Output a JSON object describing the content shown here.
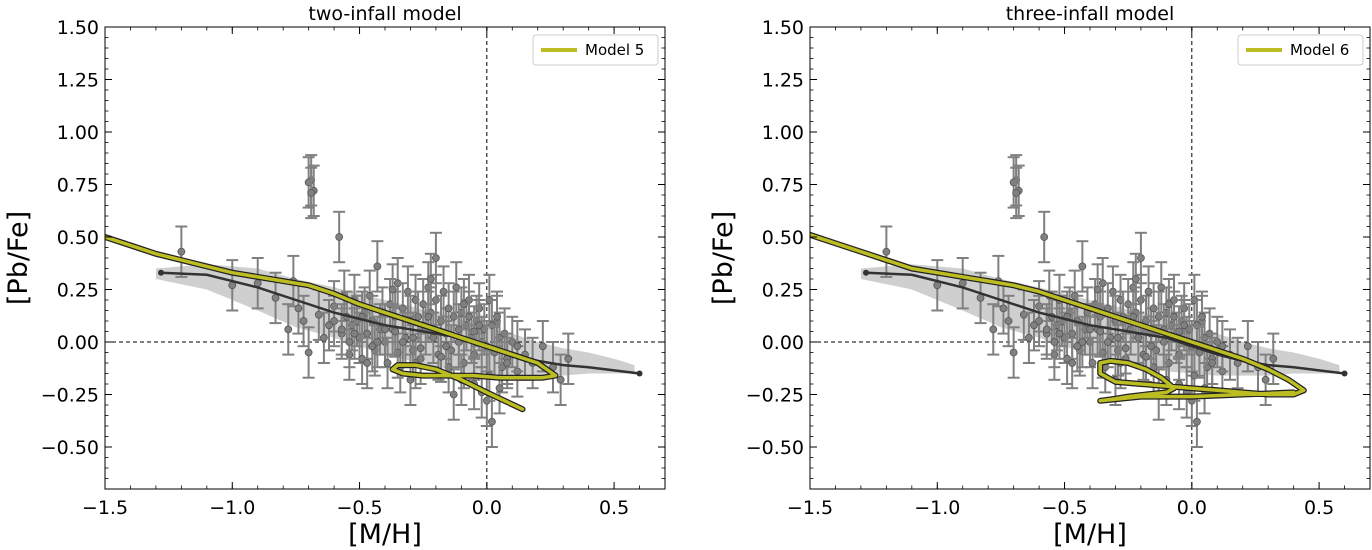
{
  "chart_data": [
    {
      "type": "scatter",
      "title": "two-infall model",
      "xlabel": "[M/H]",
      "ylabel": "[Pb/Fe]",
      "xlim": [
        -1.5,
        0.7
      ],
      "ylim": [
        -0.7,
        1.5
      ],
      "xticks": [
        -1.5,
        -1.0,
        -0.5,
        0.0,
        0.5
      ],
      "xtick_labels": [
        "−1.5",
        "−1.0",
        "−0.5",
        "0.0",
        "0.5"
      ],
      "yticks": [
        -0.5,
        -0.25,
        0.0,
        0.25,
        0.5,
        0.75,
        1.0,
        1.25,
        1.5
      ],
      "ytick_labels": [
        "−0.50",
        "−0.25",
        "0.00",
        "0.25",
        "0.50",
        "0.75",
        "1.00",
        "1.25",
        "1.50"
      ],
      "reference_lines": {
        "x": 0.0,
        "y": 0.0
      },
      "legend": {
        "position": "top-right",
        "entries": [
          {
            "label": "Model 5",
            "color": "#bcbd22"
          }
        ]
      },
      "series": [
        {
          "name": "Model 5",
          "kind": "model-line",
          "color": "#bcbd22",
          "x": [
            -1.5,
            -1.4,
            -1.3,
            -1.2,
            -1.1,
            -1.0,
            -0.9,
            -0.8,
            -0.7,
            -0.6,
            -0.5,
            -0.4,
            -0.3,
            -0.2,
            -0.1,
            0.0,
            0.1,
            0.2,
            0.27,
            0.22,
            0.12,
            0.05,
            -0.05,
            -0.15,
            -0.25,
            -0.33,
            -0.37,
            -0.35,
            -0.28,
            -0.2,
            -0.1,
            0.0,
            0.07,
            0.14
          ],
          "y": [
            0.5,
            0.46,
            0.42,
            0.39,
            0.36,
            0.33,
            0.31,
            0.29,
            0.27,
            0.23,
            0.18,
            0.14,
            0.1,
            0.06,
            0.02,
            -0.02,
            -0.06,
            -0.1,
            -0.16,
            -0.17,
            -0.17,
            -0.17,
            -0.16,
            -0.16,
            -0.16,
            -0.15,
            -0.13,
            -0.11,
            -0.11,
            -0.13,
            -0.18,
            -0.24,
            -0.28,
            -0.32
          ]
        },
        {
          "name": "Data median",
          "kind": "median-line",
          "color": "#333333",
          "x": [
            -1.28,
            -1.1,
            -0.9,
            -0.75,
            -0.6,
            -0.5,
            -0.4,
            -0.3,
            -0.2,
            -0.1,
            0.0,
            0.1,
            0.2,
            0.3,
            0.4,
            0.6
          ],
          "y": [
            0.33,
            0.32,
            0.26,
            0.2,
            0.14,
            0.11,
            0.08,
            0.06,
            0.04,
            0.02,
            -0.02,
            -0.06,
            -0.09,
            -0.11,
            -0.12,
            -0.15
          ]
        },
        {
          "name": "Data spread",
          "kind": "band",
          "color": "#cccccc",
          "x": [
            -1.3,
            -1.1,
            -0.9,
            -0.75,
            -0.6,
            -0.5,
            -0.4,
            -0.3,
            -0.2,
            -0.1,
            0.0,
            0.1,
            0.2,
            0.3,
            0.4,
            0.5,
            0.58
          ],
          "y_upper": [
            0.35,
            0.37,
            0.35,
            0.3,
            0.26,
            0.23,
            0.2,
            0.17,
            0.14,
            0.11,
            0.07,
            0.04,
            0.0,
            -0.03,
            -0.05,
            -0.08,
            -0.11
          ],
          "y_lower": [
            0.3,
            0.25,
            0.15,
            0.07,
            0.02,
            -0.02,
            -0.06,
            -0.09,
            -0.12,
            -0.14,
            -0.15,
            -0.16,
            -0.16,
            -0.16,
            -0.15,
            -0.15,
            -0.15
          ]
        },
        {
          "name": "Stars",
          "kind": "errorbar-points",
          "color": "#808080",
          "x": [
            -1.2,
            -1.0,
            -0.9,
            -0.83,
            -0.78,
            -0.76,
            -0.74,
            -0.72,
            -0.7,
            -0.69,
            -0.68,
            -0.66,
            -0.64,
            -0.62,
            -0.6,
            -0.58,
            -0.57,
            -0.56,
            -0.55,
            -0.54,
            -0.53,
            -0.52,
            -0.51,
            -0.5,
            -0.49,
            -0.48,
            -0.47,
            -0.46,
            -0.45,
            -0.44,
            -0.43,
            -0.42,
            -0.41,
            -0.4,
            -0.39,
            -0.38,
            -0.37,
            -0.36,
            -0.35,
            -0.34,
            -0.33,
            -0.32,
            -0.31,
            -0.3,
            -0.29,
            -0.28,
            -0.27,
            -0.26,
            -0.25,
            -0.24,
            -0.23,
            -0.22,
            -0.21,
            -0.2,
            -0.19,
            -0.18,
            -0.17,
            -0.16,
            -0.15,
            -0.14,
            -0.13,
            -0.12,
            -0.11,
            -0.1,
            -0.09,
            -0.08,
            -0.07,
            -0.06,
            -0.05,
            -0.04,
            -0.03,
            -0.02,
            -0.01,
            0.0,
            0.01,
            0.02,
            0.03,
            0.04,
            0.05,
            0.06,
            0.07,
            0.08,
            0.1,
            0.12,
            0.15,
            0.18,
            0.22,
            0.26,
            0.29,
            0.32,
            -0.7,
            -0.69,
            -0.54,
            -0.47,
            -0.37,
            -0.3,
            -0.2,
            -0.13,
            -0.05,
            0.0,
            0.02,
            0.05,
            -0.35,
            -0.28,
            -0.22,
            -0.15,
            -0.1,
            -0.05,
            -0.02,
            0.01,
            -0.6,
            -0.52,
            -0.45,
            -0.4,
            -0.33,
            -0.26,
            -0.18,
            -0.11,
            -0.07,
            0.03,
            0.08,
            0.12,
            -0.57,
            -0.49,
            -0.43,
            -0.36,
            -0.29,
            -0.23,
            -0.16,
            -0.09,
            -0.03,
            0.04
          ],
          "y": [
            0.43,
            0.27,
            0.28,
            0.21,
            0.06,
            0.29,
            0.16,
            0.1,
            -0.05,
            0.77,
            0.72,
            0.13,
            0.02,
            0.08,
            0.17,
            0.5,
            0.04,
            0.22,
            0.12,
            -0.06,
            0.08,
            0.2,
            0.1,
            0.02,
            -0.08,
            0.14,
            0.04,
            0.22,
            0.1,
            -0.04,
            0.36,
            0.06,
            0.14,
            0.0,
            -0.1,
            0.18,
            0.06,
            0.12,
            0.28,
            -0.12,
            0.16,
            0.02,
            0.24,
            0.1,
            -0.04,
            0.2,
            0.12,
            -0.08,
            0.18,
            0.06,
            0.26,
            0.14,
            0.02,
            0.2,
            -0.06,
            0.1,
            0.24,
            0.04,
            0.16,
            -0.04,
            0.12,
            0.26,
            0.0,
            0.14,
            -0.1,
            0.08,
            0.2,
            0.02,
            -0.06,
            0.1,
            0.16,
            0.0,
            0.06,
            -0.02,
            0.2,
            0.08,
            -0.04,
            0.1,
            0.02,
            -0.12,
            0.04,
            -0.08,
            0.0,
            -0.14,
            -0.06,
            -0.1,
            -0.02,
            -0.12,
            -0.18,
            -0.08,
            0.76,
            0.71,
            0.0,
            -0.1,
            0.25,
            -0.18,
            0.4,
            -0.25,
            -0.2,
            -0.28,
            -0.38,
            -0.22,
            -0.05,
            -0.1,
            0.3,
            -0.12,
            -0.18,
            0.05,
            -0.24,
            -0.16,
            0.1,
            0.04,
            -0.02,
            0.06,
            0.0,
            -0.03,
            -0.07,
            0.06,
            0.12,
            -0.05,
            -0.1,
            -0.02,
            0.06,
            0.12,
            0.0,
            0.05,
            0.02,
            0.12,
            -0.02,
            0.18,
            0.08,
            0.12
          ],
          "y_error": 0.12
        }
      ]
    },
    {
      "type": "scatter",
      "title": "three-infall model",
      "xlabel": "[M/H]",
      "ylabel": "[Pb/Fe]",
      "xlim": [
        -1.5,
        0.7
      ],
      "ylim": [
        -0.7,
        1.5
      ],
      "xticks": [
        -1.5,
        -1.0,
        -0.5,
        0.0,
        0.5
      ],
      "xtick_labels": [
        "−1.5",
        "−1.0",
        "−0.5",
        "0.0",
        "0.5"
      ],
      "yticks": [
        -0.5,
        -0.25,
        0.0,
        0.25,
        0.5,
        0.75,
        1.0,
        1.25,
        1.5
      ],
      "ytick_labels": [
        "−0.50",
        "−0.25",
        "0.00",
        "0.25",
        "0.50",
        "0.75",
        "1.00",
        "1.25",
        "1.50"
      ],
      "reference_lines": {
        "x": 0.0,
        "y": 0.0
      },
      "legend": {
        "position": "top-right",
        "entries": [
          {
            "label": "Model 6",
            "color": "#bcbd22"
          }
        ]
      },
      "series": [
        {
          "name": "Model 6",
          "kind": "model-line",
          "color": "#bcbd22",
          "x": [
            -1.5,
            -1.4,
            -1.3,
            -1.2,
            -1.1,
            -1.0,
            -0.9,
            -0.8,
            -0.7,
            -0.6,
            -0.5,
            -0.4,
            -0.3,
            -0.2,
            -0.1,
            0.0,
            0.1,
            0.2,
            0.3,
            0.38,
            0.44,
            0.4,
            0.3,
            0.2,
            0.1,
            0.0,
            -0.1,
            -0.2,
            -0.3,
            -0.36,
            -0.36,
            -0.32,
            -0.25,
            -0.18,
            -0.12,
            -0.07,
            -0.1,
            -0.18,
            -0.25,
            -0.3,
            -0.36,
            -0.2,
            0.0,
            0.2,
            0.4
          ],
          "y": [
            0.51,
            0.47,
            0.43,
            0.39,
            0.35,
            0.33,
            0.31,
            0.29,
            0.27,
            0.24,
            0.2,
            0.16,
            0.12,
            0.08,
            0.04,
            0.0,
            -0.04,
            -0.08,
            -0.13,
            -0.18,
            -0.23,
            -0.25,
            -0.25,
            -0.24,
            -0.23,
            -0.22,
            -0.21,
            -0.2,
            -0.19,
            -0.15,
            -0.1,
            -0.09,
            -0.1,
            -0.13,
            -0.17,
            -0.22,
            -0.24,
            -0.25,
            -0.26,
            -0.27,
            -0.28,
            -0.26,
            -0.26,
            -0.25,
            -0.24
          ]
        },
        {
          "name": "Data median",
          "kind": "median-line",
          "color": "#333333",
          "x": [
            -1.28,
            -1.1,
            -0.9,
            -0.75,
            -0.6,
            -0.5,
            -0.4,
            -0.3,
            -0.2,
            -0.1,
            0.0,
            0.1,
            0.2,
            0.3,
            0.4,
            0.6
          ],
          "y": [
            0.33,
            0.32,
            0.26,
            0.2,
            0.14,
            0.11,
            0.08,
            0.06,
            0.04,
            0.02,
            -0.02,
            -0.06,
            -0.09,
            -0.11,
            -0.12,
            -0.15
          ]
        },
        {
          "name": "Data spread",
          "kind": "band",
          "color": "#cccccc",
          "x": [
            -1.3,
            -1.1,
            -0.9,
            -0.75,
            -0.6,
            -0.5,
            -0.4,
            -0.3,
            -0.2,
            -0.1,
            0.0,
            0.1,
            0.2,
            0.3,
            0.4,
            0.5,
            0.58
          ],
          "y_upper": [
            0.35,
            0.37,
            0.35,
            0.3,
            0.26,
            0.23,
            0.2,
            0.17,
            0.14,
            0.11,
            0.07,
            0.04,
            0.0,
            -0.03,
            -0.05,
            -0.08,
            -0.11
          ],
          "y_lower": [
            0.3,
            0.25,
            0.15,
            0.07,
            0.02,
            -0.02,
            -0.06,
            -0.09,
            -0.12,
            -0.14,
            -0.15,
            -0.16,
            -0.16,
            -0.16,
            -0.15,
            -0.15,
            -0.15
          ]
        },
        {
          "name": "Stars",
          "kind": "errorbar-points",
          "color": "#808080",
          "x": [
            -1.2,
            -1.0,
            -0.9,
            -0.83,
            -0.78,
            -0.76,
            -0.74,
            -0.72,
            -0.7,
            -0.69,
            -0.68,
            -0.66,
            -0.64,
            -0.62,
            -0.6,
            -0.58,
            -0.57,
            -0.56,
            -0.55,
            -0.54,
            -0.53,
            -0.52,
            -0.51,
            -0.5,
            -0.49,
            -0.48,
            -0.47,
            -0.46,
            -0.45,
            -0.44,
            -0.43,
            -0.42,
            -0.41,
            -0.4,
            -0.39,
            -0.38,
            -0.37,
            -0.36,
            -0.35,
            -0.34,
            -0.33,
            -0.32,
            -0.31,
            -0.3,
            -0.29,
            -0.28,
            -0.27,
            -0.26,
            -0.25,
            -0.24,
            -0.23,
            -0.22,
            -0.21,
            -0.2,
            -0.19,
            -0.18,
            -0.17,
            -0.16,
            -0.15,
            -0.14,
            -0.13,
            -0.12,
            -0.11,
            -0.1,
            -0.09,
            -0.08,
            -0.07,
            -0.06,
            -0.05,
            -0.04,
            -0.03,
            -0.02,
            -0.01,
            0.0,
            0.01,
            0.02,
            0.03,
            0.04,
            0.05,
            0.06,
            0.07,
            0.08,
            0.1,
            0.12,
            0.15,
            0.18,
            0.22,
            0.26,
            0.29,
            0.32,
            -0.7,
            -0.69,
            -0.54,
            -0.47,
            -0.37,
            -0.3,
            -0.2,
            -0.13,
            -0.05,
            0.0,
            0.02,
            0.05,
            -0.35,
            -0.28,
            -0.22,
            -0.15,
            -0.1,
            -0.05,
            -0.02,
            0.01,
            -0.6,
            -0.52,
            -0.45,
            -0.4,
            -0.33,
            -0.26,
            -0.18,
            -0.11,
            -0.07,
            0.03,
            0.08,
            0.12,
            -0.57,
            -0.49,
            -0.43,
            -0.36,
            -0.29,
            -0.23,
            -0.16,
            -0.09,
            -0.03,
            0.04
          ],
          "y": [
            0.43,
            0.27,
            0.28,
            0.21,
            0.06,
            0.29,
            0.16,
            0.1,
            -0.05,
            0.77,
            0.72,
            0.13,
            0.02,
            0.08,
            0.17,
            0.5,
            0.04,
            0.22,
            0.12,
            -0.06,
            0.08,
            0.2,
            0.1,
            0.02,
            -0.08,
            0.14,
            0.04,
            0.22,
            0.1,
            -0.04,
            0.36,
            0.06,
            0.14,
            0.0,
            -0.1,
            0.18,
            0.06,
            0.12,
            0.28,
            -0.12,
            0.16,
            0.02,
            0.24,
            0.1,
            -0.04,
            0.2,
            0.12,
            -0.08,
            0.18,
            0.06,
            0.26,
            0.14,
            0.02,
            0.2,
            -0.06,
            0.1,
            0.24,
            0.04,
            0.16,
            -0.04,
            0.12,
            0.26,
            0.0,
            0.14,
            -0.1,
            0.08,
            0.2,
            0.02,
            -0.06,
            0.1,
            0.16,
            0.0,
            0.06,
            -0.02,
            0.2,
            0.08,
            -0.04,
            0.1,
            0.02,
            -0.12,
            0.04,
            -0.08,
            0.0,
            -0.14,
            -0.06,
            -0.1,
            -0.02,
            -0.12,
            -0.18,
            -0.08,
            0.76,
            0.71,
            0.0,
            -0.1,
            0.25,
            -0.18,
            0.4,
            -0.25,
            -0.2,
            -0.28,
            -0.38,
            -0.22,
            -0.05,
            -0.1,
            0.3,
            -0.12,
            -0.18,
            0.05,
            -0.24,
            -0.16,
            0.1,
            0.04,
            -0.02,
            0.06,
            0.0,
            -0.03,
            -0.07,
            0.06,
            0.12,
            -0.05,
            -0.1,
            -0.02,
            0.06,
            0.12,
            0.0,
            0.05,
            0.02,
            0.12,
            -0.02,
            0.18,
            0.08,
            0.12
          ],
          "y_error": 0.12
        }
      ]
    }
  ]
}
